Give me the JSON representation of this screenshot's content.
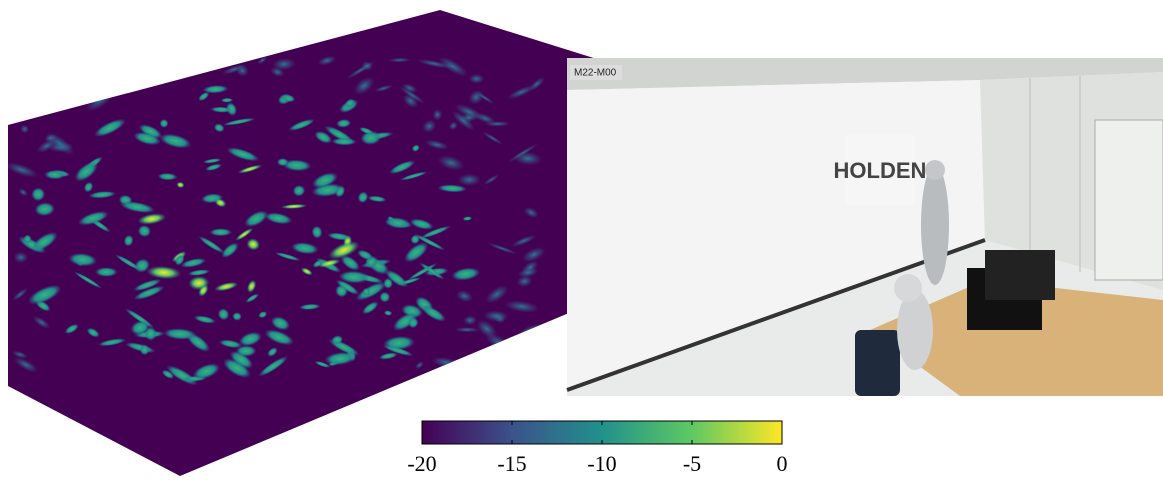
{
  "chart_data": {
    "type": "colorbar",
    "colors": [
      "#440154",
      "#3b528b",
      "#21918c",
      "#5ec962",
      "#fde725"
    ],
    "xlim": [
      -20,
      0
    ],
    "xticks": [
      -20,
      -15,
      -10,
      -5,
      0
    ]
  },
  "photo": {
    "label": "M22-M00",
    "sign": "HOLDEN"
  }
}
